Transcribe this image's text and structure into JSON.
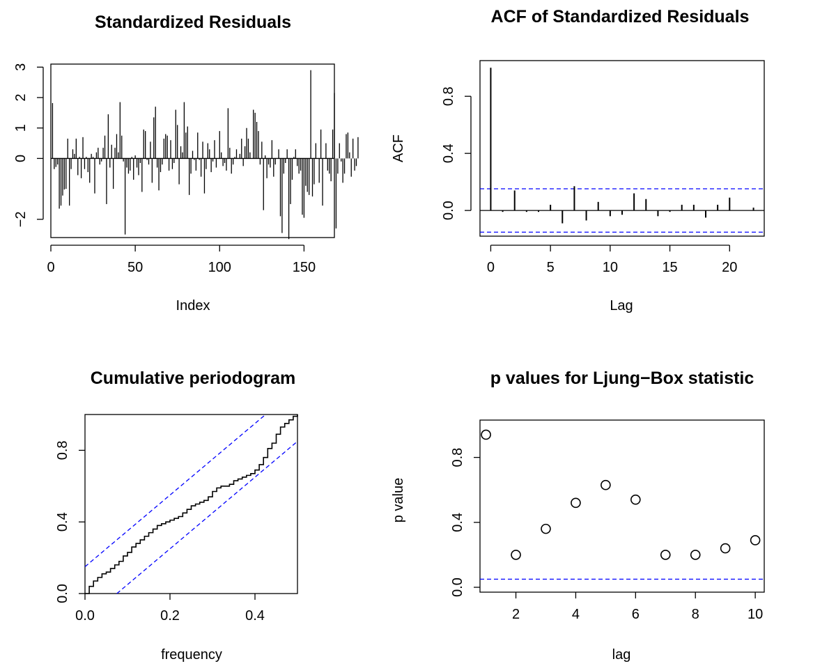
{
  "chart_data": [
    {
      "id": "resid",
      "type": "bar",
      "title": "Standardized Residuals",
      "xlabel": "Index",
      "ylabel": "",
      "xlim": [
        0,
        168
      ],
      "ylim": [
        -2.6,
        3.1
      ],
      "xticks": [
        0,
        50,
        100,
        150
      ],
      "yticks": [
        -2,
        0,
        1,
        2,
        3
      ],
      "ytick_labels": [
        "−2",
        "0",
        "1",
        "2",
        "3"
      ],
      "reference_line": 0,
      "values": [
        1.82,
        -0.35,
        -0.28,
        -0.2,
        -1.65,
        -1.55,
        -1.22,
        -1.02,
        -1.0,
        0.65,
        -1.55,
        -0.35,
        0.3,
        0.15,
        0.65,
        -0.55,
        0.05,
        -0.65,
        0.7,
        -0.35,
        0.05,
        -0.45,
        -0.8,
        0.15,
        0.05,
        -1.15,
        0.2,
        0.35,
        -0.2,
        -0.1,
        0.35,
        0.75,
        -1.5,
        1.45,
        -0.3,
        0.45,
        -1.0,
        0.35,
        0.8,
        0.2,
        1.85,
        0.75,
        -0.1,
        -2.5,
        -0.3,
        -0.5,
        -0.4,
        0.05,
        -0.7,
        0.1,
        -0.3,
        -0.55,
        -0.15,
        -1.1,
        0.95,
        0.9,
        -0.05,
        -0.2,
        0.55,
        -0.8,
        1.35,
        1.7,
        -0.3,
        -1.05,
        -0.45,
        -0.2,
        0.65,
        0.8,
        0.75,
        -0.4,
        0.6,
        -0.35,
        -0.15,
        1.6,
        1.1,
        -0.85,
        0.4,
        0.2,
        1.85,
        0.85,
        1.05,
        -1.2,
        -0.5,
        0.25,
        -0.05,
        -0.4,
        0.85,
        -0.05,
        -0.6,
        0.55,
        -1.15,
        -0.35,
        0.5,
        0.3,
        -0.45,
        -0.1,
        0.6,
        -0.3,
        0.0,
        0.9,
        0.2,
        -0.25,
        -0.15,
        -0.4,
        1.65,
        0.35,
        -0.5,
        -0.2,
        0.05,
        0.3,
        0.0,
        0.15,
        0.65,
        -0.25,
        0.4,
        1.0,
        0.65,
        0.2,
        0.0,
        1.6,
        1.5,
        1.2,
        0.9,
        -0.2,
        0.55,
        -1.7,
        0.1,
        -0.65,
        -0.2,
        -0.3,
        0.6,
        -0.6,
        -0.2,
        0.0,
        0.3,
        -1.9,
        -2.45,
        -0.5,
        -0.15,
        0.3,
        -2.65,
        -1.5,
        -0.7,
        0.05,
        0.3,
        -0.25,
        -0.5,
        -0.4,
        -1.85,
        -1.95,
        -0.9,
        -1.1,
        -1.2,
        2.9,
        -1.25,
        -0.85,
        0.5,
        0.0,
        -0.8,
        0.95,
        -1.55,
        0.0,
        0.5,
        -0.4,
        -0.5,
        -0.75,
        0.95,
        2.15,
        -2.3,
        -0.5,
        0.5,
        -0.1,
        -0.8,
        -0.5,
        0.8,
        0.85,
        0.2,
        -0.6,
        0.65,
        -0.4,
        -0.25,
        0.7
      ]
    },
    {
      "id": "acf",
      "type": "bar",
      "title": "ACF of Standardized Residuals",
      "xlabel": "Lag",
      "ylabel": "ACF",
      "xlim": [
        -0.9,
        22.9
      ],
      "ylim": [
        -0.18,
        1.05
      ],
      "xticks": [
        0,
        5,
        10,
        15,
        20
      ],
      "yticks": [
        0.0,
        0.4,
        0.8
      ],
      "ytick_labels": [
        "0.0",
        "0.4",
        "0.8"
      ],
      "reference_line": 0,
      "confidence_band": 0.152,
      "band_color": "#0000ff",
      "x": [
        0,
        1,
        2,
        3,
        4,
        5,
        6,
        7,
        8,
        9,
        10,
        11,
        12,
        13,
        14,
        15,
        16,
        17,
        18,
        19,
        20,
        21,
        22
      ],
      "values": [
        1.0,
        -0.01,
        0.14,
        -0.01,
        -0.01,
        0.04,
        -0.09,
        0.17,
        -0.07,
        0.06,
        -0.04,
        -0.03,
        0.12,
        0.08,
        -0.04,
        -0.01,
        0.04,
        0.04,
        -0.05,
        0.04,
        0.09,
        0.0,
        0.02
      ]
    },
    {
      "id": "cpgram",
      "type": "line",
      "title": "Cumulative periodogram",
      "xlabel": "frequency",
      "ylabel": "",
      "xlim": [
        0,
        0.5
      ],
      "ylim": [
        0,
        1
      ],
      "xticks": [
        0.0,
        0.2,
        0.4
      ],
      "yticks": [
        0.0,
        0.4,
        0.8
      ],
      "xtick_labels": [
        "0.0",
        "0.2",
        "0.4"
      ],
      "ytick_labels": [
        "0.0",
        "0.4",
        "0.8"
      ],
      "band_offset": 0.15,
      "band_color": "#0000ff",
      "x": [
        0,
        0.01,
        0.02,
        0.03,
        0.04,
        0.05,
        0.06,
        0.07,
        0.08,
        0.09,
        0.1,
        0.11,
        0.12,
        0.13,
        0.14,
        0.15,
        0.16,
        0.17,
        0.18,
        0.19,
        0.2,
        0.21,
        0.22,
        0.23,
        0.24,
        0.25,
        0.26,
        0.27,
        0.28,
        0.29,
        0.3,
        0.31,
        0.32,
        0.33,
        0.34,
        0.35,
        0.36,
        0.37,
        0.38,
        0.39,
        0.4,
        0.41,
        0.42,
        0.43,
        0.44,
        0.45,
        0.46,
        0.47,
        0.48,
        0.49,
        0.5
      ],
      "y": [
        0,
        0.04,
        0.07,
        0.09,
        0.11,
        0.12,
        0.14,
        0.16,
        0.18,
        0.21,
        0.23,
        0.26,
        0.28,
        0.3,
        0.32,
        0.34,
        0.36,
        0.38,
        0.39,
        0.4,
        0.41,
        0.42,
        0.43,
        0.45,
        0.47,
        0.49,
        0.5,
        0.51,
        0.52,
        0.54,
        0.57,
        0.59,
        0.6,
        0.6,
        0.61,
        0.63,
        0.64,
        0.65,
        0.66,
        0.67,
        0.69,
        0.72,
        0.76,
        0.81,
        0.84,
        0.89,
        0.93,
        0.95,
        0.97,
        0.99,
        1.0
      ]
    },
    {
      "id": "ljung",
      "type": "scatter",
      "title": "p values for Ljung−Box statistic",
      "xlabel": "lag",
      "ylabel": "p value",
      "xlim": [
        0.8,
        10.3
      ],
      "ylim": [
        -0.03,
        1.03
      ],
      "xticks": [
        2,
        4,
        6,
        8,
        10
      ],
      "yticks": [
        0.0,
        0.4,
        0.8
      ],
      "ytick_labels": [
        "0.0",
        "0.4",
        "0.8"
      ],
      "reference_line": 0.05,
      "reference_color": "#0000ff",
      "x": [
        1,
        2,
        3,
        4,
        5,
        6,
        7,
        8,
        9,
        10
      ],
      "y": [
        0.94,
        0.2,
        0.36,
        0.52,
        0.63,
        0.54,
        0.2,
        0.2,
        0.24,
        0.29
      ]
    }
  ]
}
